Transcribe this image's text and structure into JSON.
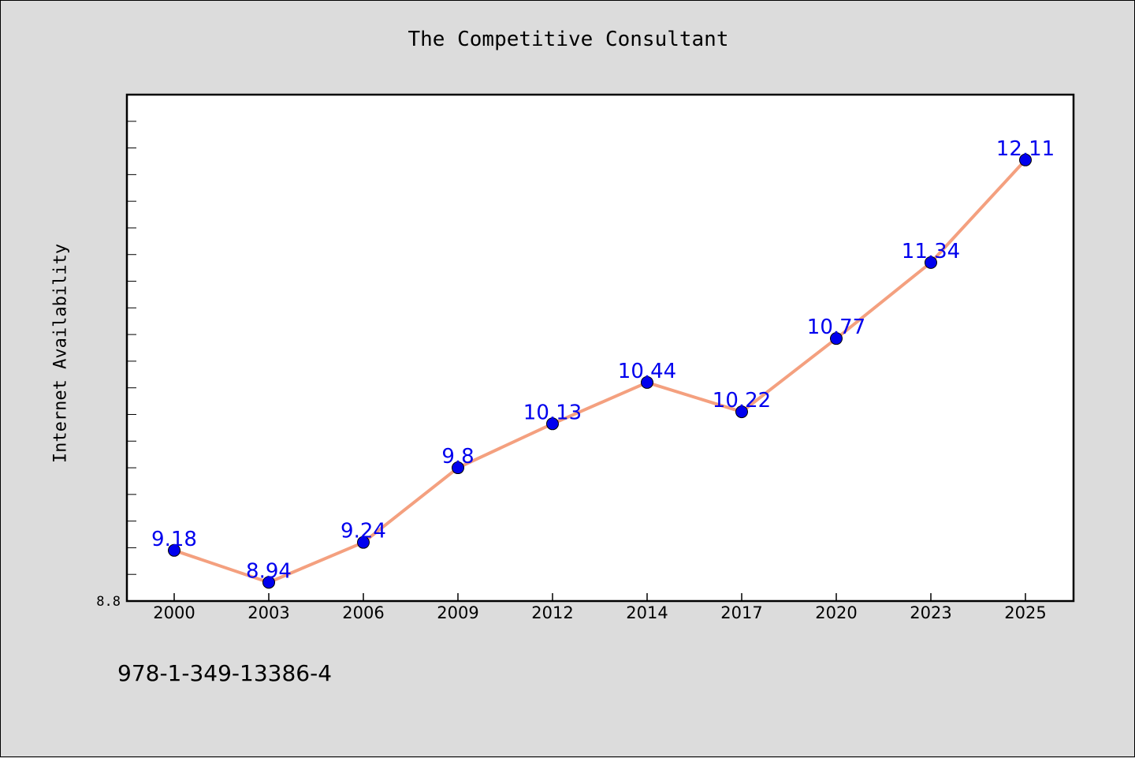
{
  "chart_data": {
    "type": "line",
    "title": "The Competitive Consultant",
    "xlabel": "",
    "ylabel": "Internet Availability",
    "categories": [
      "2000",
      "2003",
      "2006",
      "2009",
      "2012",
      "2014",
      "2017",
      "2020",
      "2023",
      "2025"
    ],
    "series": [
      {
        "values": [
          9.18,
          8.94,
          9.24,
          9.8,
          10.13,
          10.44,
          10.22,
          10.77,
          11.34,
          12.11
        ]
      }
    ],
    "data_labels": [
      "9.18",
      "8.94",
      "9.24",
      "9.8",
      "10.13",
      "10.44",
      "10.22",
      "10.77",
      "11.34",
      "12.11"
    ],
    "ylim": [
      8.8,
      12.6
    ],
    "y_tick_labels": [
      "8.8"
    ],
    "grid": false,
    "line_color": "#f4a07f",
    "marker_color": "#0000ee",
    "label_color": "#0000ee"
  },
  "footer": {
    "code": "978-1-349-13386-4"
  }
}
